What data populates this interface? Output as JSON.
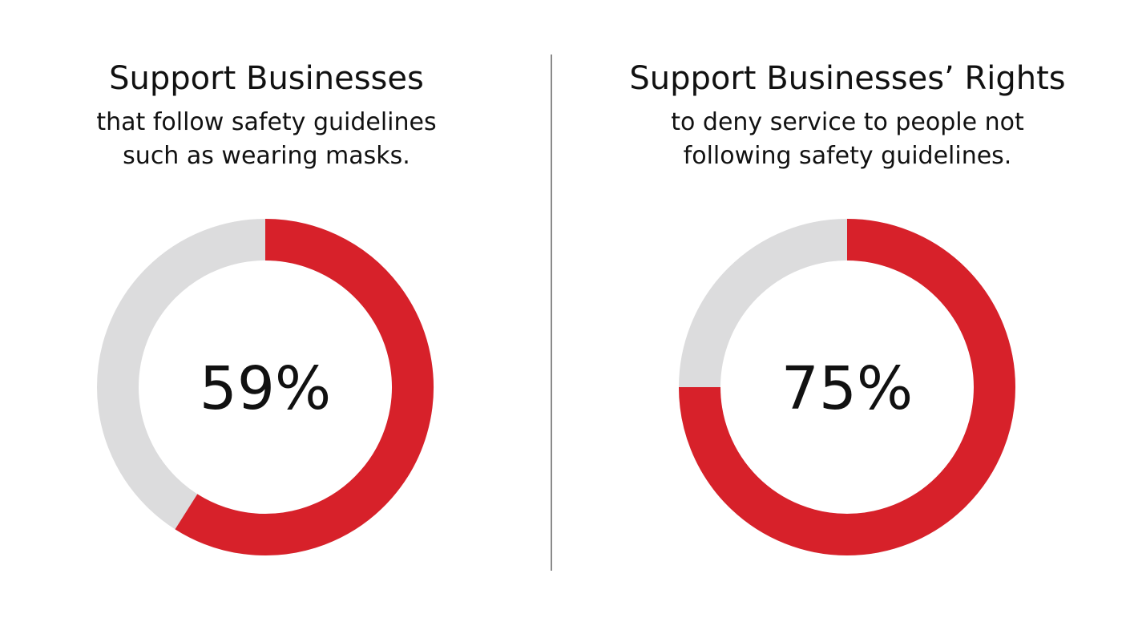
{
  "colors": {
    "value": "#d7212a",
    "remainder": "#dcdcdd",
    "divider": "#8a8a8a",
    "text": "#111111"
  },
  "chart_data": [
    {
      "type": "pie",
      "style": "donut",
      "title": "Support Businesses",
      "subtitle": [
        "that follow safety guidelines",
        "such as wearing masks."
      ],
      "center_label": "59%",
      "value": 59,
      "unit": "percent"
    },
    {
      "type": "pie",
      "style": "donut",
      "title": "Support Businesses’ Rights",
      "subtitle": [
        "to deny service to people not",
        "following safety guidelines."
      ],
      "center_label": "75%",
      "value": 75,
      "unit": "percent"
    }
  ]
}
